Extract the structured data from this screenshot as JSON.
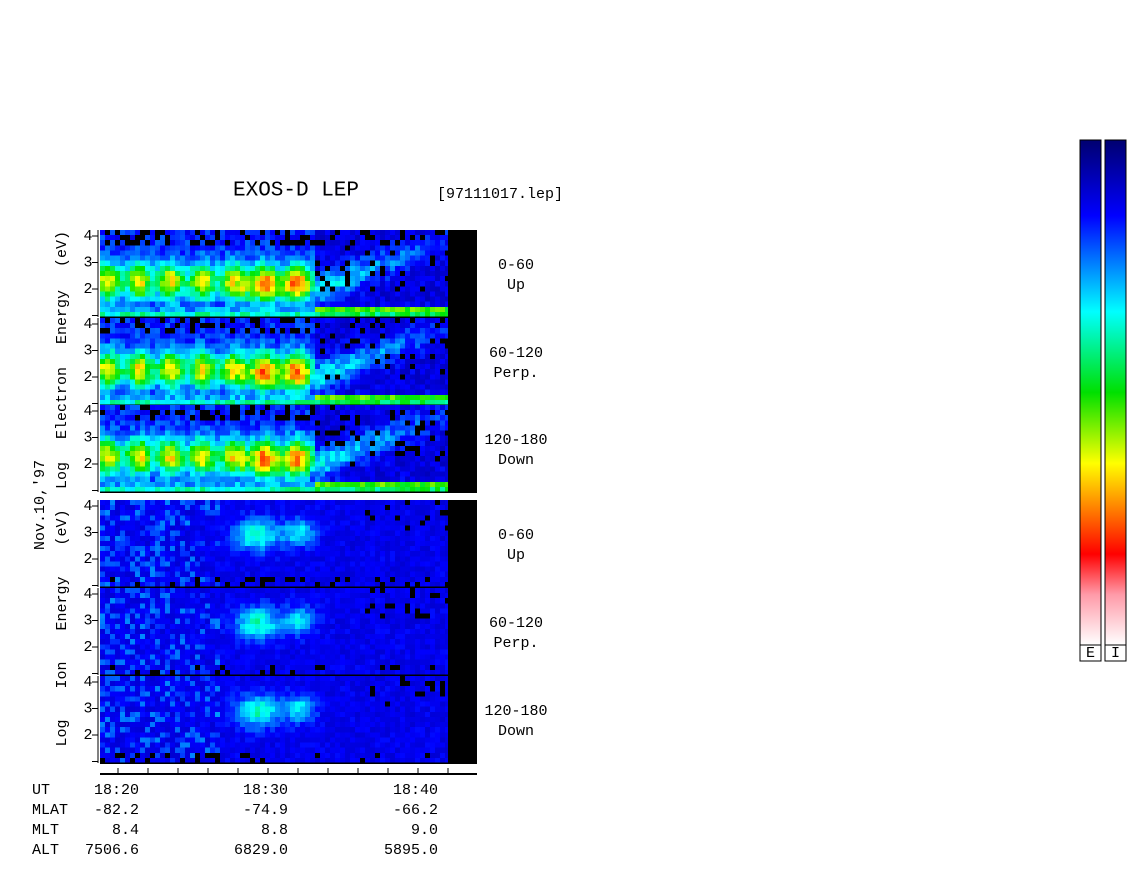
{
  "header": {
    "title": "EXOS-D LEP",
    "file": "[97111017.lep]"
  },
  "date": "Nov.10,'97",
  "groups": [
    {
      "axis_label": "Log Electron Energy (eV)",
      "panels": [
        {
          "angle": "0-60",
          "direction": "Up",
          "yticks": [
            4,
            3,
            2
          ]
        },
        {
          "angle": "60-120",
          "direction": "Perp.",
          "yticks": [
            4,
            3,
            2
          ]
        },
        {
          "angle": "120-180",
          "direction": "Down",
          "yticks": [
            4,
            3,
            2
          ]
        }
      ]
    },
    {
      "axis_label": "Log Ion Energy (eV)",
      "panels": [
        {
          "angle": "0-60",
          "direction": "Up",
          "yticks": [
            4,
            3,
            2
          ]
        },
        {
          "angle": "60-120",
          "direction": "Perp.",
          "yticks": [
            4,
            3,
            2
          ]
        },
        {
          "angle": "120-180",
          "direction": "Down",
          "yticks": [
            4,
            3,
            2
          ]
        }
      ]
    }
  ],
  "orbit": {
    "rows": [
      {
        "label": "UT",
        "values": [
          "18:20",
          "18:30",
          "18:40"
        ]
      },
      {
        "label": "MLAT",
        "values": [
          "-82.2",
          "-74.9",
          "-66.2"
        ]
      },
      {
        "label": "MLT",
        "values": [
          "8.4",
          "8.8",
          "9.0"
        ]
      },
      {
        "label": "ALT",
        "values": [
          "7506.6",
          "6829.0",
          "5895.0"
        ]
      }
    ]
  },
  "colorbars": [
    "E",
    "I"
  ]
}
